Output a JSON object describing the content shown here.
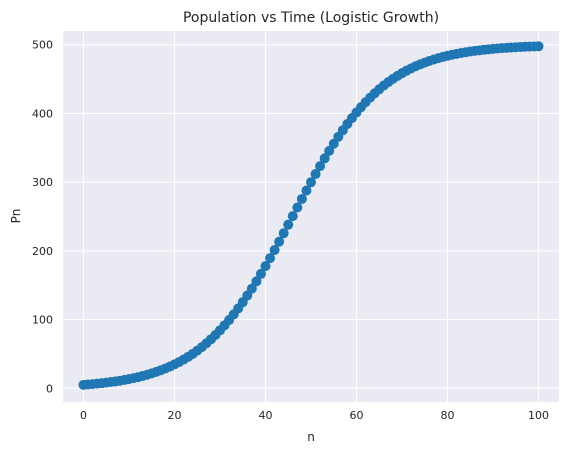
{
  "chart_data": {
    "type": "scatter",
    "title": "Population vs Time (Logistic Growth)",
    "xlabel": "n",
    "ylabel": "Pn",
    "xlim": [
      -4.5,
      104.5
    ],
    "ylim": [
      -20,
      520
    ],
    "x_ticks": [
      0,
      20,
      40,
      60,
      80,
      100
    ],
    "y_ticks": [
      0,
      100,
      200,
      300,
      400,
      500
    ],
    "grid": true,
    "legend": "none",
    "model": {
      "initial_population": 5,
      "carrying_capacity": 500,
      "growth_rate": 0.1
    },
    "series": [
      {
        "x_start": 0,
        "x_end": 100,
        "x_step": 1,
        "values_note_is_not_used": null
      }
    ]
  },
  "colors": {
    "axes_background": "#eaeaf2",
    "grid": "#ffffff",
    "marker": "#1f77b4",
    "text": "#262626"
  }
}
